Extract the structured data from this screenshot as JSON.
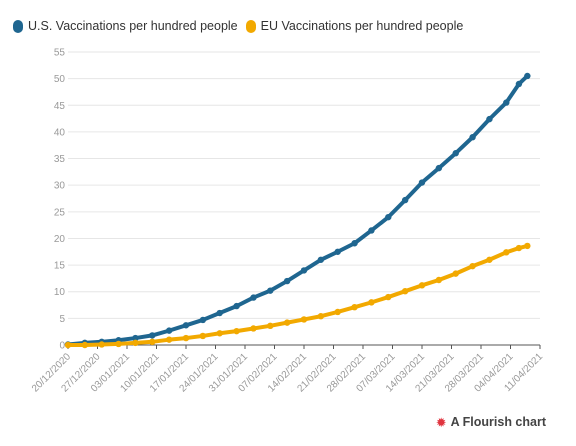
{
  "legend": {
    "us_label": "U.S. Vaccinations per hundred people",
    "eu_label": "EU Vaccinations per hundred people"
  },
  "footer": {
    "credit": "A Flourish chart"
  },
  "colors": {
    "us": "#1f6690",
    "eu": "#f2a900",
    "grid": "#e6e6e6",
    "tick": "#999999",
    "axis": "#555555"
  },
  "chart_data": {
    "type": "scatter",
    "title": "",
    "xlabel": "",
    "ylabel": "",
    "ylim": [
      0,
      55
    ],
    "yticks": [
      0,
      5,
      10,
      15,
      20,
      25,
      30,
      35,
      40,
      45,
      50,
      55
    ],
    "xticks": [
      "20/12/2020",
      "27/12/2020",
      "03/01/2021",
      "10/01/2021",
      "17/01/2021",
      "24/01/2021",
      "31/01/2021",
      "07/02/2021",
      "14/02/2021",
      "21/02/2021",
      "28/02/2021",
      "07/03/2021",
      "14/03/2021",
      "21/03/2021",
      "28/03/2021",
      "04/04/2021",
      "11/04/2021"
    ],
    "x_start": "20/12/2020",
    "x_end": "11/04/2021",
    "grid": true,
    "legend_position": "top-left",
    "series": [
      {
        "name": "U.S. Vaccinations per hundred people",
        "x": [
          "20/12/2020",
          "24/12/2020",
          "28/12/2020",
          "01/01/2021",
          "05/01/2021",
          "09/01/2021",
          "13/01/2021",
          "17/01/2021",
          "21/01/2021",
          "25/01/2021",
          "29/01/2021",
          "02/02/2021",
          "06/02/2021",
          "10/02/2021",
          "14/02/2021",
          "18/02/2021",
          "22/02/2021",
          "26/02/2021",
          "02/03/2021",
          "06/03/2021",
          "10/03/2021",
          "14/03/2021",
          "18/03/2021",
          "22/03/2021",
          "26/03/2021",
          "30/03/2021",
          "03/04/2021",
          "06/04/2021",
          "08/04/2021"
        ],
        "values": [
          0.1,
          0.4,
          0.6,
          0.9,
          1.3,
          1.8,
          2.7,
          3.7,
          4.7,
          6.0,
          7.3,
          8.9,
          10.2,
          12.0,
          14.0,
          16.0,
          17.5,
          19.1,
          21.5,
          24.0,
          27.2,
          30.5,
          33.2,
          36.0,
          39.0,
          42.4,
          45.5,
          49.0,
          50.5
        ]
      },
      {
        "name": "EU Vaccinations per hundred people",
        "x": [
          "20/12/2020",
          "24/12/2020",
          "28/12/2020",
          "01/01/2021",
          "05/01/2021",
          "09/01/2021",
          "13/01/2021",
          "17/01/2021",
          "21/01/2021",
          "25/01/2021",
          "29/01/2021",
          "02/02/2021",
          "06/02/2021",
          "10/02/2021",
          "14/02/2021",
          "18/02/2021",
          "22/02/2021",
          "26/02/2021",
          "02/03/2021",
          "06/03/2021",
          "10/03/2021",
          "14/03/2021",
          "18/03/2021",
          "22/03/2021",
          "26/03/2021",
          "30/03/2021",
          "03/04/2021",
          "06/04/2021",
          "08/04/2021"
        ],
        "values": [
          0.0,
          0.0,
          0.1,
          0.2,
          0.4,
          0.6,
          1.0,
          1.3,
          1.7,
          2.2,
          2.6,
          3.1,
          3.6,
          4.2,
          4.8,
          5.4,
          6.2,
          7.1,
          8.0,
          9.0,
          10.1,
          11.2,
          12.2,
          13.4,
          14.8,
          16.0,
          17.4,
          18.2,
          18.6
        ]
      }
    ]
  }
}
